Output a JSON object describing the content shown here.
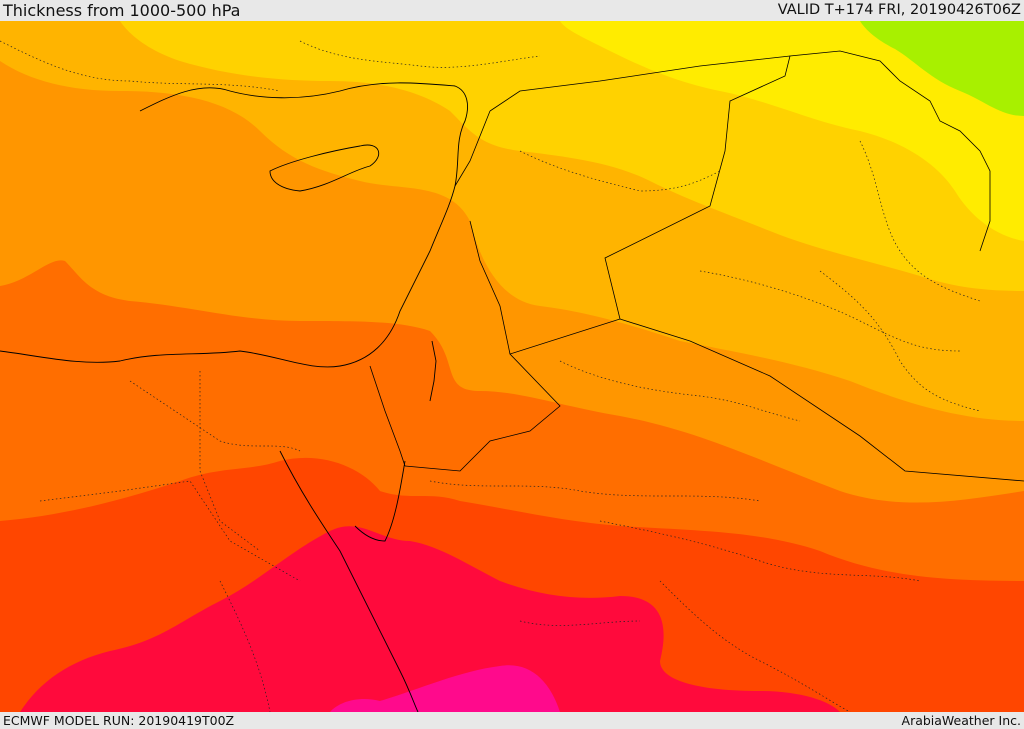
{
  "header": {
    "title": "Thickness from 1000-500 hPa",
    "valid": "VALID T+174 FRI, 20190426T06Z"
  },
  "footer": {
    "model_run": "ECMWF MODEL RUN: 20190419T00Z",
    "credit": "ArabiaWeather Inc."
  },
  "map": {
    "field": "1000-500 hPa thickness",
    "palette": {
      "lime": "#a8f000",
      "yellow": "#ffec00",
      "yellow_orange": "#ffd200",
      "light_orange": "#ffb400",
      "orange": "#ff9600",
      "dark_orange": "#ff6e00",
      "red_orange": "#ff4600",
      "crimson": "#ff0a3c",
      "magenta": "#ff0a8c"
    },
    "boundary_color": "#000000"
  }
}
